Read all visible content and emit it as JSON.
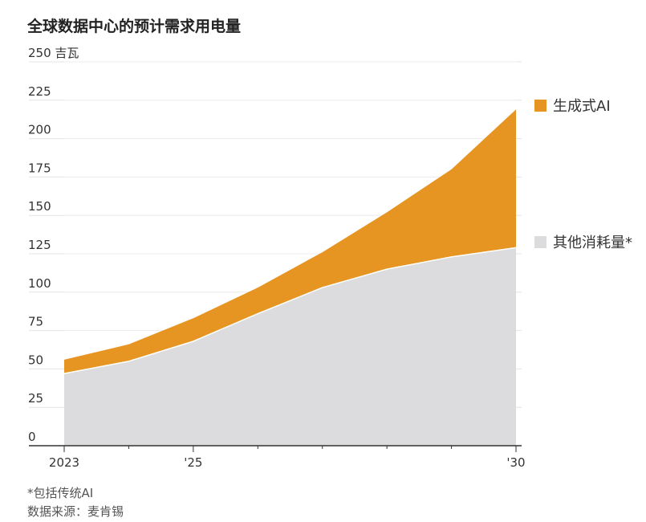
{
  "title": "全球数据中心的预计需求用电量",
  "footnote": "*包括传统AI",
  "source": "数据来源：麦肯锡",
  "colors": {
    "genai": "#E69522",
    "other": "#DCDCDE",
    "grid": "#E4E4E4",
    "axis": "#333333"
  },
  "chart_data": {
    "type": "area",
    "stacked": true,
    "x": [
      2023,
      2024,
      2025,
      2026,
      2027,
      2028,
      2029,
      2030
    ],
    "x_tick_values": [
      2023,
      2025,
      2030
    ],
    "x_tick_labels": [
      "2023",
      "'25",
      "'30"
    ],
    "ylim": [
      0,
      250
    ],
    "y_ticks": [
      0,
      25,
      50,
      75,
      100,
      125,
      150,
      175,
      200,
      225,
      250
    ],
    "y_unit_label": "250 吉瓦",
    "legend_placement": "right",
    "series": [
      {
        "name": "其他消耗量*",
        "color_key": "other",
        "values": [
          47,
          55,
          68,
          86,
          103,
          115,
          123,
          129
        ]
      },
      {
        "name": "生成式AI",
        "color_key": "genai",
        "values": [
          9,
          11,
          15,
          17,
          23,
          37,
          57,
          90
        ]
      }
    ],
    "totals": [
      56,
      66,
      83,
      103,
      126,
      152,
      180,
      219
    ]
  }
}
